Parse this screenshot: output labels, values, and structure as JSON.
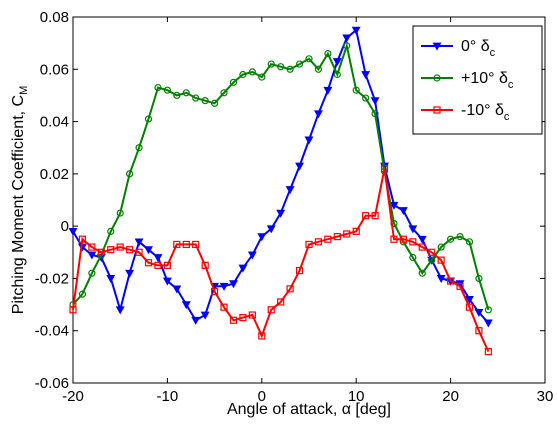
{
  "chart_data": {
    "type": "line",
    "title": "",
    "xlabel": "Angle of attack, α [deg]",
    "ylabel_main": "Pitching Moment Coefficient, C",
    "ylabel_sub": "M",
    "xlim": [
      -20,
      30
    ],
    "ylim": [
      -0.06,
      0.08
    ],
    "xticks": [
      -20,
      -10,
      0,
      10,
      20,
      30
    ],
    "xtick_labels": [
      "-20",
      "-10",
      "0",
      "10",
      "20",
      "30"
    ],
    "yticks": [
      -0.06,
      -0.04,
      -0.02,
      0,
      0.02,
      0.04,
      0.06,
      0.08
    ],
    "ytick_labels": [
      "-0.06",
      "-0.04",
      "-0.02",
      "0",
      "0.02",
      "0.04",
      "0.06",
      "0.08"
    ],
    "grid": false,
    "legend_position": "top-right",
    "series": [
      {
        "name": "0° δ",
        "name_sub": "c",
        "color": "#0000ff",
        "marker": "triangle-down",
        "x": [
          -20,
          -19,
          -18,
          -17,
          -16,
          -15,
          -14,
          -13,
          -12,
          -11,
          -10,
          -9,
          -8,
          -7,
          -6,
          -5,
          -4,
          -3,
          -2,
          -1,
          0,
          1,
          2,
          3,
          4,
          5,
          6,
          7,
          8,
          9,
          10,
          11,
          12,
          13,
          14,
          15,
          16,
          17,
          18,
          19,
          20,
          21,
          22,
          23,
          24
        ],
        "y": [
          -0.002,
          -0.008,
          -0.011,
          -0.012,
          -0.02,
          -0.032,
          -0.018,
          -0.006,
          -0.009,
          -0.012,
          -0.021,
          -0.024,
          -0.03,
          -0.036,
          -0.034,
          -0.023,
          -0.023,
          -0.022,
          -0.016,
          -0.011,
          -0.004,
          -0.001,
          0.005,
          0.014,
          0.023,
          0.033,
          0.043,
          0.052,
          0.063,
          0.072,
          0.075,
          0.058,
          0.048,
          0.023,
          0.008,
          0.006,
          -0.001,
          -0.005,
          -0.013,
          -0.02,
          -0.021,
          -0.022,
          -0.028,
          -0.033,
          -0.037
        ]
      },
      {
        "name": "+10° δ",
        "name_sub": "c",
        "color": "#008000",
        "marker": "circle",
        "x": [
          -20,
          -19,
          -18,
          -17,
          -16,
          -15,
          -14,
          -13,
          -12,
          -11,
          -10,
          -9,
          -8,
          -7,
          -6,
          -5,
          -4,
          -3,
          -2,
          -1,
          0,
          1,
          2,
          3,
          4,
          5,
          6,
          7,
          8,
          9,
          10,
          11,
          12,
          13,
          14,
          15,
          16,
          17,
          18,
          19,
          20,
          21,
          22,
          23,
          24
        ],
        "y": [
          -0.03,
          -0.026,
          -0.018,
          -0.011,
          -0.002,
          0.005,
          0.02,
          0.03,
          0.041,
          0.053,
          0.052,
          0.05,
          0.051,
          0.049,
          0.048,
          0.047,
          0.051,
          0.055,
          0.058,
          0.059,
          0.057,
          0.062,
          0.061,
          0.06,
          0.062,
          0.064,
          0.06,
          0.066,
          0.058,
          0.069,
          0.052,
          0.049,
          0.043,
          0.021,
          0.001,
          -0.006,
          -0.012,
          -0.018,
          -0.013,
          -0.008,
          -0.005,
          -0.004,
          -0.006,
          -0.02,
          -0.032
        ]
      },
      {
        "name": "-10° δ",
        "name_sub": "c",
        "color": "#ff0000",
        "marker": "square",
        "x": [
          -20,
          -19,
          -18,
          -17,
          -16,
          -15,
          -14,
          -13,
          -12,
          -11,
          -10,
          -9,
          -8,
          -7,
          -6,
          -5,
          -4,
          -3,
          -2,
          -1,
          0,
          1,
          2,
          3,
          4,
          5,
          6,
          7,
          8,
          9,
          10,
          11,
          12,
          13,
          14,
          15,
          16,
          17,
          18,
          19,
          20,
          21,
          22,
          23,
          24
        ],
        "y": [
          -0.032,
          -0.005,
          -0.008,
          -0.01,
          -0.009,
          -0.008,
          -0.009,
          -0.01,
          -0.014,
          -0.015,
          -0.015,
          -0.007,
          -0.007,
          -0.007,
          -0.015,
          -0.025,
          -0.031,
          -0.036,
          -0.035,
          -0.034,
          -0.042,
          -0.032,
          -0.029,
          -0.024,
          -0.017,
          -0.007,
          -0.006,
          -0.005,
          -0.004,
          -0.003,
          -0.002,
          0.004,
          0.004,
          0.022,
          -0.005,
          -0.005,
          -0.006,
          -0.008,
          -0.01,
          -0.013,
          -0.021,
          -0.023,
          -0.031,
          -0.04,
          -0.048
        ]
      }
    ]
  }
}
